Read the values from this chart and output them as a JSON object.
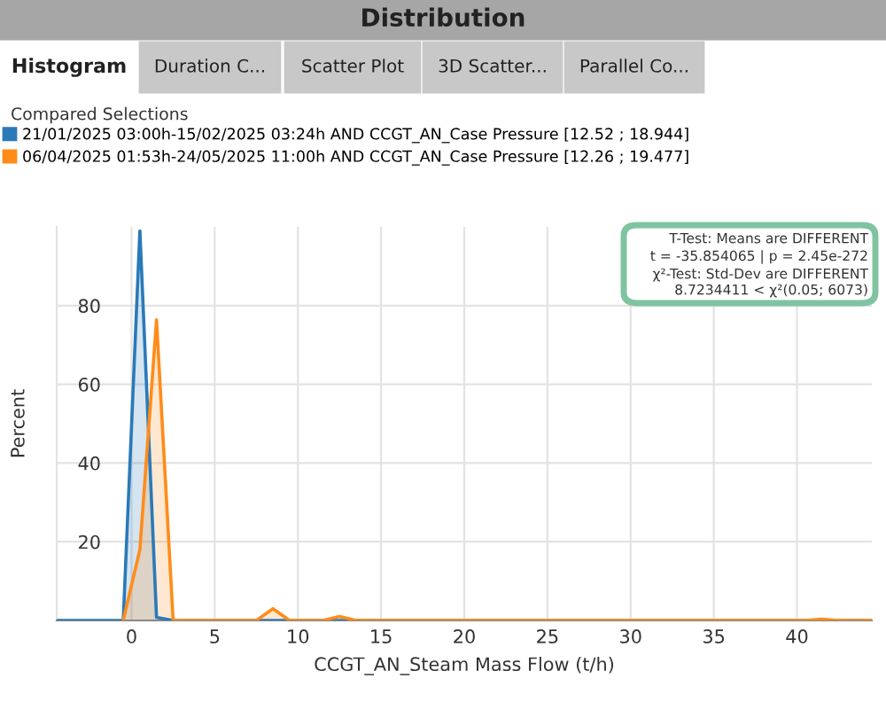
{
  "chart_data": {
    "type": "area",
    "title": "Distribution",
    "subtitle": "Compared Selections",
    "xlabel": "CCGT_AN_Steam Mass Flow (t/h)",
    "ylabel": "Percent",
    "series": [
      {
        "name": "21/01/2025 03:00h-15/02/2025 03:24h AND CCGT_AN_Case Pressure [12.52 ; 18.944]",
        "color": "#2a7ab8",
        "x": [
          -4.5,
          -0.5,
          0.5,
          1.5,
          2.5,
          44.5
        ],
        "values": [
          0,
          0,
          99,
          0.8,
          0,
          0
        ]
      },
      {
        "name": "06/04/2025 01:53h-24/05/2025 11:00h AND CCGT_AN_Case Pressure [12.26 ; 19.477]",
        "color": "#ff8c1a",
        "x": [
          -0.5,
          0.5,
          1.5,
          2.5,
          7.5,
          8.5,
          9.5,
          11.5,
          12.5,
          13.5,
          40.5,
          41.5,
          42.5,
          44.5
        ],
        "values": [
          0,
          18,
          76.4,
          0,
          0,
          3,
          0,
          0,
          1,
          0,
          0,
          0.3,
          0,
          0
        ]
      }
    ],
    "xlim": [
      -4.5,
      44.5
    ],
    "ylim": [
      0,
      100
    ],
    "xticks": [
      0,
      5,
      10,
      15,
      20,
      25,
      30,
      35,
      40
    ],
    "yticks": [
      20,
      40,
      60,
      80
    ],
    "grid": true,
    "legend": "top left",
    "annotations": [
      "Histogram",
      "Duration C...",
      "Scatter Plot",
      "3D Scatter...",
      "Parallel Co...",
      "T-Test: Means are DIFFERENT",
      "t = -35.854065 | p = 2.45e-272",
      "χ²-Test: Std-Dev are DIFFERENT",
      "8.7234411 < χ²(0.05; 6073)"
    ]
  }
}
